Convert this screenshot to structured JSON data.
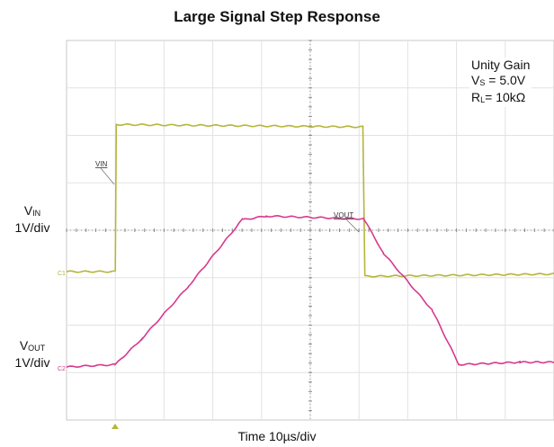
{
  "chart_data": {
    "type": "line",
    "title": "Large Signal Step Response",
    "xlabel": "Time 10µs/div",
    "x_divisions": 10,
    "y_divisions": 8,
    "vin_axis_label": {
      "main": "V",
      "sub": "IN",
      "scale": "1V/div"
    },
    "vout_axis_label": {
      "main": "V",
      "sub": "OUT",
      "scale": "1V/div"
    },
    "conditions": {
      "line1": "Unity Gain",
      "line2": {
        "main": "V",
        "sub": "S",
        "rest": " = 5.0V"
      },
      "line3": {
        "main": "R",
        "sub": "L",
        "rest": "= 10kΩ"
      }
    },
    "series": [
      {
        "name": "VIN",
        "label": "VIN",
        "channel_tag": "C1",
        "color": "#b5b53a",
        "points": [
          [
            0,
            0
          ],
          [
            1.0,
            0
          ],
          [
            1.02,
            3.1
          ],
          [
            6.08,
            3.05
          ],
          [
            6.12,
            -0.1
          ],
          [
            10,
            -0.05
          ]
        ]
      },
      {
        "name": "VOUT",
        "label": "VOUT",
        "channel_tag": "C2",
        "color": "#d63a8e",
        "points": [
          [
            0,
            0
          ],
          [
            1.0,
            0.05
          ],
          [
            1.55,
            0.6
          ],
          [
            2.5,
            1.7
          ],
          [
            3.6,
            3.1
          ],
          [
            4.1,
            3.18
          ],
          [
            6.1,
            3.12
          ],
          [
            6.5,
            2.4
          ],
          [
            7.5,
            1.2
          ],
          [
            8.05,
            0.05
          ],
          [
            9.3,
            0.1
          ],
          [
            10,
            0.1
          ]
        ]
      }
    ]
  }
}
